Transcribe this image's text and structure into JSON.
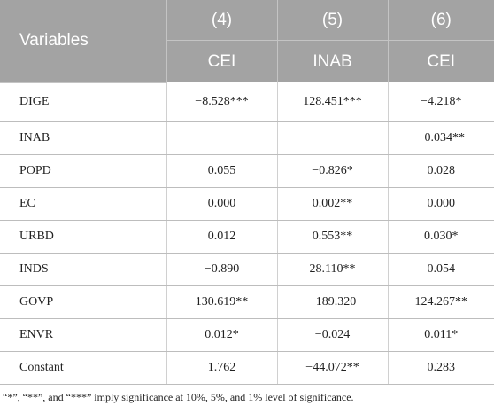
{
  "table": {
    "header": {
      "variables_label": "Variables",
      "models": [
        "(4)",
        "(5)",
        "(6)"
      ],
      "dependents": [
        "CEI",
        "INAB",
        "CEI"
      ]
    },
    "rows": [
      {
        "variable": "DIGE",
        "values": [
          "−8.528***",
          "128.451***",
          "−4.218*"
        ]
      },
      {
        "variable": "INAB",
        "values": [
          "",
          "",
          "−0.034**"
        ]
      },
      {
        "variable": "POPD",
        "values": [
          "0.055",
          "−0.826*",
          "0.028"
        ]
      },
      {
        "variable": "EC",
        "values": [
          "0.000",
          "0.002**",
          "0.000"
        ]
      },
      {
        "variable": "URBD",
        "values": [
          "0.012",
          "0.553**",
          "0.030*"
        ]
      },
      {
        "variable": "INDS",
        "values": [
          "−0.890",
          "28.110**",
          "0.054"
        ]
      },
      {
        "variable": "GOVP",
        "values": [
          "130.619**",
          "−189.320",
          "124.267**"
        ]
      },
      {
        "variable": "ENVR",
        "values": [
          "0.012*",
          "−0.024",
          "0.011*"
        ]
      },
      {
        "variable": "Constant",
        "values": [
          "1.762",
          "−44.072**",
          "0.283"
        ]
      }
    ]
  },
  "footnote": "“*”, “**”, and “***” imply significance at 10%, 5%, and 1% level of significance."
}
